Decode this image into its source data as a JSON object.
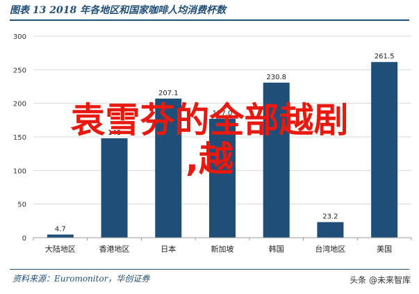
{
  "header": {
    "title": "图表 13   2018 年各地区和国家咖啡人均消费杯数"
  },
  "overlay": {
    "line1": "袁雪芬的全部越剧",
    "line2": ",越"
  },
  "footer": {
    "source": "资料来源：Euromonitor，华创证券",
    "watermark": "头条 @未来智库"
  },
  "colors": {
    "bar": "#1f4e79",
    "accent": "#1f4e79",
    "overlay": "#e8190e"
  },
  "chart_data": {
    "type": "bar",
    "title": "2018 年各地区和国家咖啡人均消费杯数",
    "categories": [
      "大陆地区",
      "香港地区",
      "日本",
      "新加坡",
      "韩国",
      "台湾地区",
      "美国"
    ],
    "values": [
      4.7,
      148,
      207.1,
      177.0,
      230.8,
      23.2,
      261.5
    ],
    "value_labels": [
      "4.7",
      "148",
      "207.1",
      "177.0",
      "230.8",
      "23.2",
      "261.5"
    ],
    "y_ticks": [
      "0",
      "50",
      "100",
      "150",
      "200",
      "250",
      "300"
    ],
    "ylim": [
      0,
      300
    ],
    "grid": true,
    "xlabel": "",
    "ylabel": ""
  }
}
